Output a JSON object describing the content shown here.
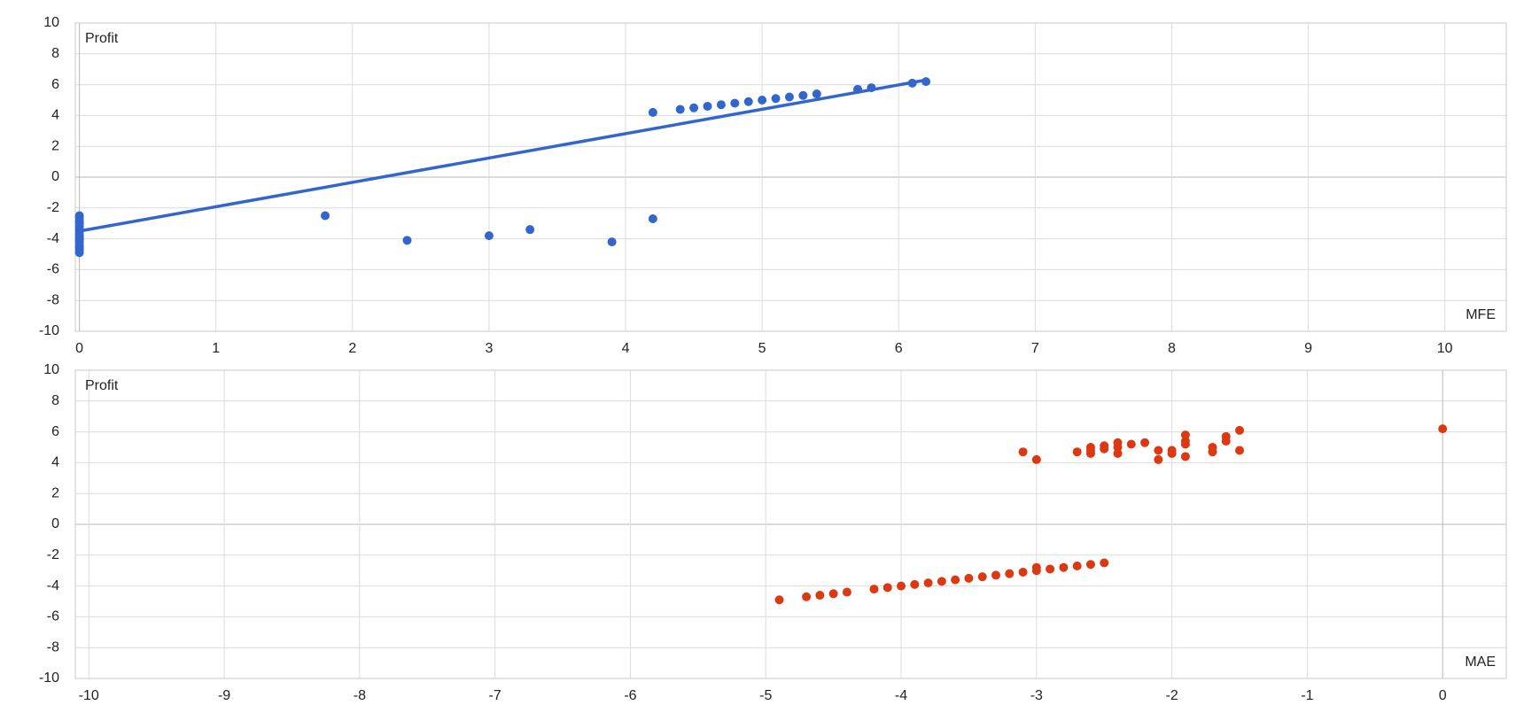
{
  "chart_data": [
    {
      "type": "scatter",
      "x_label": "MFE",
      "y_label": "Profit",
      "color": "#3366cc",
      "grid": true,
      "xlim": [
        -0.03,
        10.45
      ],
      "ylim": [
        -10,
        10
      ],
      "xticks": [
        0,
        1,
        2,
        3,
        4,
        5,
        6,
        7,
        8,
        9,
        10
      ],
      "yticks": [
        -10,
        -8,
        -6,
        -4,
        -2,
        0,
        2,
        4,
        6,
        8,
        10
      ],
      "x": [
        0,
        0,
        0,
        0,
        0,
        0,
        0,
        0,
        0,
        0,
        0,
        0,
        0,
        0,
        0,
        0,
        0,
        0,
        0,
        1.8,
        2.4,
        3.0,
        3.3,
        3.9,
        4.2,
        4.2,
        4.4,
        4.5,
        4.6,
        4.7,
        4.8,
        4.9,
        5.0,
        5.1,
        5.2,
        5.3,
        5.4,
        5.7,
        5.8,
        6.1,
        6.2
      ],
      "values": [
        -2.5,
        -2.6,
        -2.8,
        -2.9,
        -3.0,
        -3.2,
        -3.4,
        -3.5,
        -3.7,
        -3.8,
        -3.9,
        -4.0,
        -4.1,
        -4.2,
        -4.4,
        -4.5,
        -4.6,
        -4.7,
        -4.9,
        -2.5,
        -4.1,
        -3.8,
        -3.4,
        -4.2,
        -2.7,
        4.2,
        4.4,
        4.5,
        4.6,
        4.7,
        4.8,
        4.9,
        5.0,
        5.1,
        5.2,
        5.3,
        5.4,
        5.7,
        5.8,
        6.1,
        6.2
      ],
      "trendline": {
        "x": [
          0,
          6.2
        ],
        "y": [
          -3.5,
          6.3
        ]
      }
    },
    {
      "type": "scatter",
      "x_label": "MAE",
      "y_label": "Profit",
      "color": "#dc3912",
      "grid": true,
      "xlim": [
        -10.1,
        0.47
      ],
      "ylim": [
        -10,
        10
      ],
      "xticks": [
        -10,
        -9,
        -8,
        -7,
        -6,
        -5,
        -4,
        -3,
        -2,
        -1,
        0
      ],
      "yticks": [
        -10,
        -8,
        -6,
        -4,
        -2,
        0,
        2,
        4,
        6,
        8,
        10
      ],
      "x": [
        -3.1,
        -3.0,
        -2.7,
        -2.6,
        -2.6,
        -2.6,
        -2.5,
        -2.5,
        -2.4,
        -2.4,
        -2.4,
        -2.3,
        -2.2,
        -2.1,
        -2.1,
        -2.0,
        -2.0,
        -1.9,
        -1.9,
        -1.9,
        -1.9,
        -1.7,
        -1.7,
        -1.6,
        -1.6,
        -1.5,
        -1.5,
        0,
        -4.9,
        -4.7,
        -4.6,
        -4.5,
        -4.4,
        -4.2,
        -4.1,
        -4.0,
        -3.9,
        -3.8,
        -3.7,
        -3.6,
        -3.5,
        -3.4,
        -3.3,
        -3.2,
        -3.1,
        -3.0,
        -3.0,
        -2.9,
        -2.8,
        -2.7,
        -2.6,
        -2.5
      ],
      "values": [
        4.7,
        4.2,
        4.7,
        4.6,
        4.8,
        5.0,
        4.9,
        5.1,
        4.6,
        5.0,
        5.3,
        5.2,
        5.3,
        4.2,
        4.8,
        4.6,
        4.8,
        4.4,
        5.2,
        5.4,
        5.8,
        4.7,
        5.0,
        5.4,
        5.7,
        4.8,
        6.1,
        6.2,
        -4.9,
        -4.7,
        -4.6,
        -4.5,
        -4.4,
        -4.2,
        -4.1,
        -4.0,
        -3.9,
        -3.8,
        -3.7,
        -3.6,
        -3.5,
        -3.4,
        -3.3,
        -3.2,
        -3.1,
        -3.0,
        -2.8,
        -2.9,
        -2.8,
        -2.7,
        -2.6,
        -2.5
      ]
    }
  ]
}
